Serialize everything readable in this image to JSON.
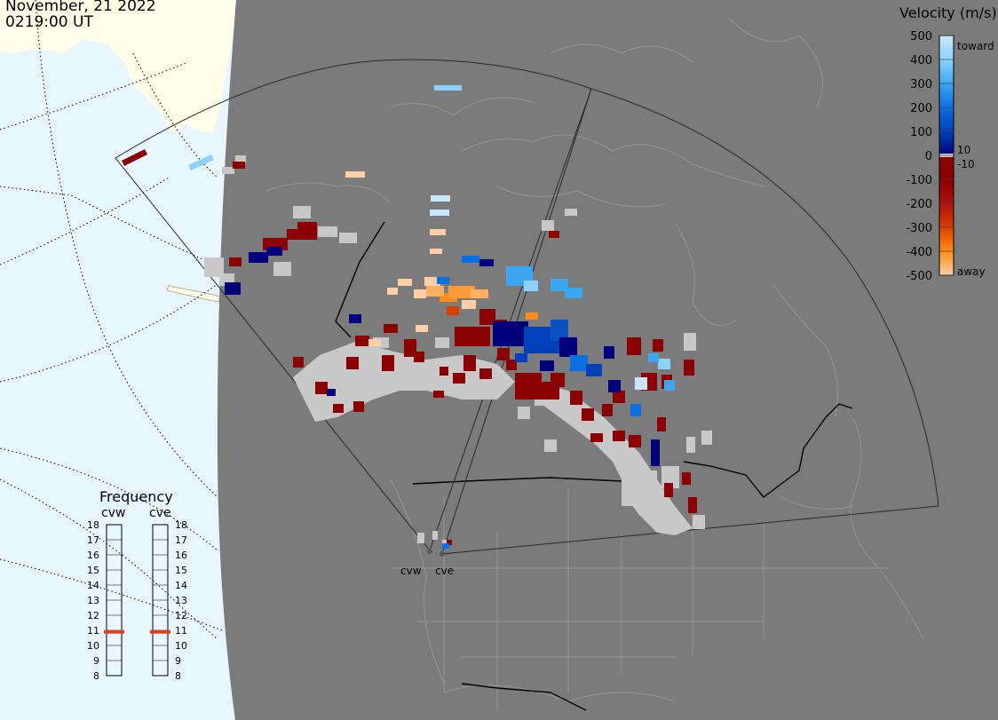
{
  "header": {
    "date": "November, 21 2022",
    "time": "0219:00 UT"
  },
  "colors": {
    "ocean": "#e8f6ff",
    "land_outside": "#fdfde8",
    "dayside_gray": "#7b7b7b",
    "border_lines": "#959595",
    "ground_scatter": "#c8c8c8",
    "dark_red": "#8b0000",
    "red": "#b01010",
    "orange_red": "#d94000",
    "orange": "#ff8c1a",
    "light_orange": "#ffb060",
    "peach": "#ffd0a8",
    "navy": "#00007a",
    "blue": "#0040b8",
    "mid_blue": "#0a70e0",
    "sky_blue": "#3ca6f0",
    "light_blue": "#8cd2ff",
    "pale_blue": "#c8e8ff"
  },
  "velocity_scale": {
    "title": "Velocity (m/s)",
    "ticks": [
      "500",
      "400",
      "300",
      "200",
      "100",
      "0",
      "-100",
      "-200",
      "-300",
      "-400",
      "-500"
    ],
    "label_toward": "toward",
    "label_away": "away",
    "label_plus10": "10",
    "label_minus10": "-10"
  },
  "frequency": {
    "title": "Frequency",
    "radar_left": "cvw",
    "radar_right": "cve",
    "ticks": [
      "18",
      "17",
      "16",
      "15",
      "14",
      "13",
      "12",
      "11",
      "10",
      "9",
      "8"
    ],
    "left_marker_mhz": 10.9,
    "right_marker_mhz": 10.9
  },
  "radars": {
    "west_label": "cvw",
    "east_label": "cve"
  }
}
